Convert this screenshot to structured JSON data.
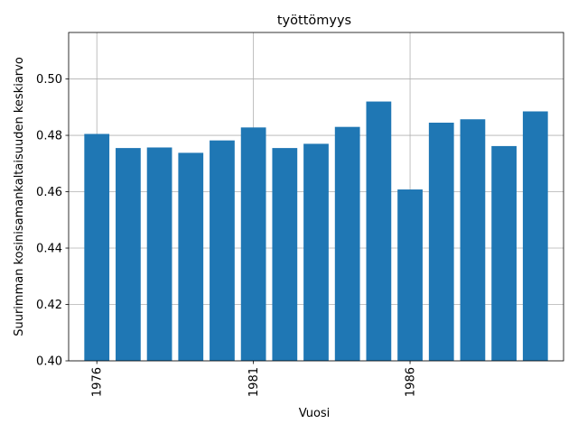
{
  "chart_data": {
    "type": "bar",
    "title": "työttömyys",
    "xlabel": "Vuosi",
    "ylabel": "Suurimman kosinisamankaltaisuuden keskiarvo",
    "x": [
      1976,
      1977,
      1978,
      1979,
      1980,
      1981,
      1982,
      1983,
      1984,
      1985,
      1986,
      1987,
      1988,
      1989,
      1990
    ],
    "values": [
      0.4805,
      0.4755,
      0.4757,
      0.4738,
      0.4782,
      0.4828,
      0.4755,
      0.477,
      0.483,
      0.492,
      0.4608,
      0.4845,
      0.4857,
      0.4762,
      0.4885
    ],
    "xticks": [
      "1976",
      "1981",
      "1986"
    ],
    "yticks": [
      "0.40",
      "0.42",
      "0.44",
      "0.46",
      "0.48",
      "0.50"
    ],
    "xlim": [
      1975.1,
      1990.9
    ],
    "ylim": [
      0.4,
      0.5165
    ],
    "grid": true,
    "bar_color": "#1f77b4"
  }
}
